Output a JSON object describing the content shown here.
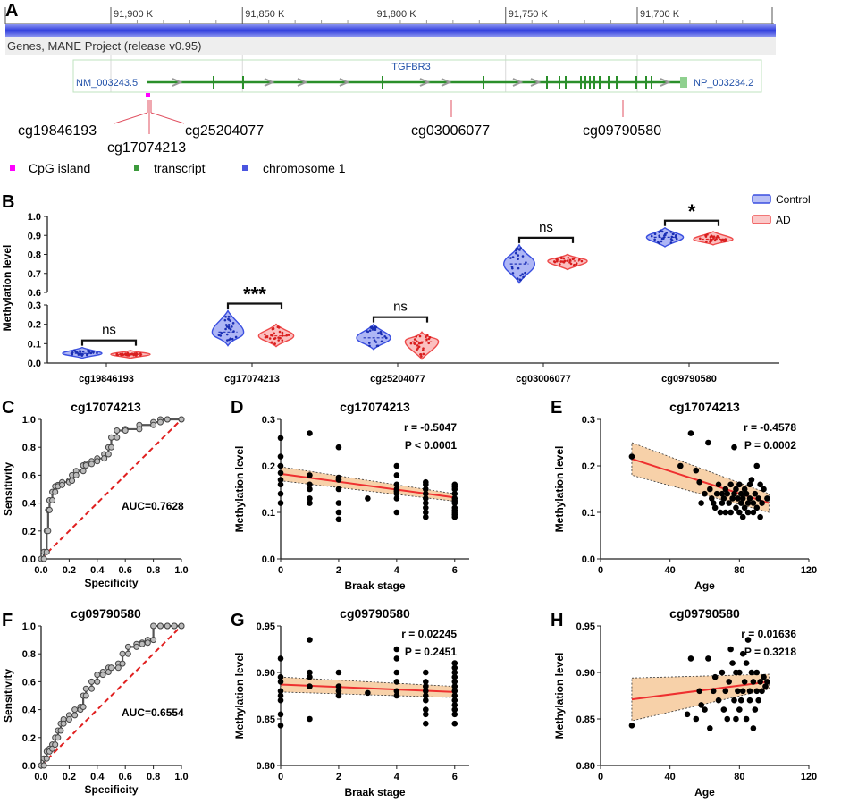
{
  "panel_a": {
    "letter": "A",
    "ruler_ticks": [
      {
        "pos": 91900,
        "label": "91,900 K"
      },
      {
        "pos": 91850,
        "label": "91,850 K"
      },
      {
        "pos": 91800,
        "label": "91,800 K"
      },
      {
        "pos": 91750,
        "label": "91,750 K"
      },
      {
        "pos": 91700,
        "label": "91,700 K"
      }
    ],
    "track_label": "Genes, MANE Project (release v0.95)",
    "gene_name": "TGFBR3",
    "transcript_left": "NM_003243.5",
    "transcript_right": "NP_003234.2",
    "probes": [
      {
        "name": "cg19846193"
      },
      {
        "name": "cg17074213"
      },
      {
        "name": "cg25204077"
      },
      {
        "name": "cg03006077"
      },
      {
        "name": "cg09790580"
      }
    ],
    "legend": [
      {
        "label": "CpG island",
        "color": "#ff00ff"
      },
      {
        "label": "transcript",
        "color": "#3c9a3c"
      },
      {
        "label": "chromosome 1",
        "color": "#4a55e0"
      }
    ]
  },
  "panel_b": {
    "letter": "B",
    "ylabel": "Methylation level",
    "lower_ticks": [
      "0.0",
      "0.1",
      "0.2",
      "0.3"
    ],
    "upper_ticks": [
      "0.6",
      "0.7",
      "0.8",
      "0.9",
      "1.0"
    ],
    "legend": [
      {
        "label": "Control",
        "color": "#3a4fe0"
      },
      {
        "label": "AD",
        "color": "#ee4a4a"
      }
    ],
    "groups": [
      {
        "name": "cg19846193",
        "control": 0.05,
        "ad": 0.045,
        "control_range": [
          0.025,
          0.08
        ],
        "ad_range": [
          0.025,
          0.065
        ],
        "sig": "ns"
      },
      {
        "name": "cg17074213",
        "control": 0.16,
        "ad": 0.14,
        "control_range": [
          0.09,
          0.27
        ],
        "ad_range": [
          0.085,
          0.2
        ],
        "sig": "***"
      },
      {
        "name": "cg25204077",
        "control": 0.13,
        "ad": 0.11,
        "control_range": [
          0.07,
          0.2
        ],
        "ad_range": [
          0.02,
          0.16
        ],
        "sig": "ns"
      },
      {
        "name": "cg03006077",
        "control": 0.75,
        "ad": 0.765,
        "control_range": [
          0.65,
          0.85
        ],
        "ad_range": [
          0.72,
          0.8
        ],
        "sig": "ns"
      },
      {
        "name": "cg09790580",
        "control": 0.89,
        "ad": 0.88,
        "control_range": [
          0.84,
          0.94
        ],
        "ad_range": [
          0.85,
          0.92
        ],
        "sig": "*"
      }
    ]
  },
  "chart_data": [
    {
      "panel": "C",
      "type": "line",
      "title": "cg17074213",
      "xlabel": "Specificity",
      "ylabel": "Sensitivity",
      "xlim": [
        0,
        1
      ],
      "ylim": [
        0,
        1
      ],
      "ticks": [
        "0.0",
        "0.2",
        "0.4",
        "0.6",
        "0.8",
        "1.0"
      ],
      "annotation": "AUC=0.7628",
      "x": [
        0,
        0.02,
        0.04,
        0.05,
        0.06,
        0.08,
        0.1,
        0.12,
        0.15,
        0.2,
        0.22,
        0.25,
        0.3,
        0.32,
        0.36,
        0.4,
        0.45,
        0.48,
        0.5,
        0.54,
        0.6,
        0.7,
        0.8,
        0.85,
        0.9,
        1.0
      ],
      "y": [
        0,
        0.05,
        0.2,
        0.35,
        0.42,
        0.48,
        0.52,
        0.53,
        0.55,
        0.56,
        0.6,
        0.63,
        0.67,
        0.68,
        0.7,
        0.72,
        0.75,
        0.8,
        0.87,
        0.92,
        0.93,
        0.96,
        0.98,
        1.0,
        1.0,
        1.0
      ]
    },
    {
      "panel": "D",
      "type": "scatter",
      "title": "cg17074213",
      "xlabel": "Braak stage",
      "ylabel": "Methylation level",
      "xlim": [
        0,
        6.5
      ],
      "ylim": [
        0,
        0.3
      ],
      "xticks": [
        "0",
        "2",
        "4",
        "6"
      ],
      "yticks": [
        "0.0",
        "0.1",
        "0.2",
        "0.3"
      ],
      "r": "r = -0.5047",
      "p": "P < 0.0001",
      "fit": {
        "x": [
          0,
          6
        ],
        "y": [
          0.183,
          0.132
        ],
        "band_lo": [
          0.168,
          0.124
        ],
        "band_hi": [
          0.198,
          0.14
        ]
      },
      "x": [
        0,
        0,
        0,
        0,
        0,
        0,
        0,
        0,
        1,
        1,
        1,
        1,
        1,
        1,
        2,
        2,
        2,
        2,
        2,
        2,
        2,
        3,
        4,
        4,
        4,
        4,
        4,
        4,
        4,
        4,
        5,
        5,
        5,
        5,
        5,
        5,
        5,
        5,
        5,
        6,
        6,
        6,
        6,
        6,
        6,
        6,
        6,
        6,
        6,
        6,
        6
      ],
      "y": [
        0.26,
        0.22,
        0.2,
        0.185,
        0.17,
        0.16,
        0.14,
        0.12,
        0.27,
        0.18,
        0.16,
        0.15,
        0.13,
        0.12,
        0.24,
        0.175,
        0.17,
        0.15,
        0.12,
        0.1,
        0.085,
        0.13,
        0.2,
        0.18,
        0.16,
        0.15,
        0.145,
        0.14,
        0.13,
        0.1,
        0.165,
        0.16,
        0.15,
        0.14,
        0.13,
        0.12,
        0.11,
        0.1,
        0.09,
        0.16,
        0.155,
        0.15,
        0.14,
        0.13,
        0.125,
        0.12,
        0.11,
        0.105,
        0.1,
        0.095,
        0.09
      ]
    },
    {
      "panel": "E",
      "type": "scatter",
      "title": "cg17074213",
      "xlabel": "Age",
      "ylabel": "Methylation level",
      "xlim": [
        0,
        120
      ],
      "ylim": [
        0,
        0.3
      ],
      "xticks": [
        "0",
        "40",
        "80",
        "120"
      ],
      "yticks": [
        "0.0",
        "0.1",
        "0.2",
        "0.3"
      ],
      "r": "r = -0.4578",
      "p": "P = 0.0002",
      "fit": {
        "x": [
          18,
          97
        ],
        "y": [
          0.215,
          0.12
        ],
        "band_lo": [
          0.18,
          0.1
        ],
        "band_hi": [
          0.25,
          0.14
        ]
      },
      "x": [
        18,
        46,
        52,
        55,
        57,
        58,
        60,
        62,
        63,
        64,
        65,
        66,
        67,
        68,
        69,
        70,
        70,
        71,
        72,
        72,
        73,
        74,
        75,
        75,
        76,
        77,
        77,
        78,
        78,
        79,
        80,
        80,
        81,
        81,
        82,
        82,
        83,
        83,
        84,
        85,
        85,
        86,
        86,
        87,
        88,
        88,
        89,
        90,
        90,
        91,
        92,
        92,
        93,
        94,
        96
      ],
      "y": [
        0.22,
        0.2,
        0.27,
        0.19,
        0.165,
        0.12,
        0.14,
        0.25,
        0.15,
        0.13,
        0.12,
        0.11,
        0.14,
        0.16,
        0.1,
        0.14,
        0.12,
        0.13,
        0.15,
        0.1,
        0.14,
        0.12,
        0.16,
        0.1,
        0.13,
        0.24,
        0.14,
        0.11,
        0.15,
        0.13,
        0.1,
        0.16,
        0.14,
        0.12,
        0.09,
        0.13,
        0.15,
        0.11,
        0.14,
        0.12,
        0.1,
        0.16,
        0.13,
        0.17,
        0.12,
        0.1,
        0.14,
        0.11,
        0.2,
        0.13,
        0.09,
        0.16,
        0.12,
        0.15,
        0.13
      ]
    },
    {
      "panel": "F",
      "type": "line",
      "title": "cg09790580",
      "xlabel": "Specificity",
      "ylabel": "Sensitivity",
      "xlim": [
        0,
        1
      ],
      "ylim": [
        0,
        1
      ],
      "ticks": [
        "0.0",
        "0.2",
        "0.4",
        "0.6",
        "0.8",
        "1.0"
      ],
      "annotation": "AUC=0.6554",
      "x": [
        0,
        0.02,
        0.04,
        0.06,
        0.08,
        0.1,
        0.12,
        0.14,
        0.16,
        0.2,
        0.24,
        0.28,
        0.3,
        0.32,
        0.36,
        0.4,
        0.44,
        0.48,
        0.5,
        0.55,
        0.58,
        0.62,
        0.68,
        0.72,
        0.76,
        0.8,
        0.85,
        0.9,
        0.95,
        1.0
      ],
      "y": [
        0,
        0.05,
        0.1,
        0.12,
        0.15,
        0.2,
        0.25,
        0.3,
        0.33,
        0.36,
        0.4,
        0.42,
        0.5,
        0.55,
        0.6,
        0.65,
        0.67,
        0.7,
        0.7,
        0.73,
        0.8,
        0.85,
        0.87,
        0.88,
        0.9,
        1.0,
        1.0,
        1.0,
        1.0,
        1.0
      ]
    },
    {
      "panel": "G",
      "type": "scatter",
      "title": "cg09790580",
      "xlabel": "Braak stage",
      "ylabel": "Methylation level",
      "xlim": [
        0,
        6.5
      ],
      "ylim": [
        0.8,
        0.95
      ],
      "xticks": [
        "0",
        "2",
        "4",
        "6"
      ],
      "yticks": [
        "0.80",
        "0.85",
        "0.90",
        "0.95"
      ],
      "r": "r = 0.02245",
      "p": "P = 0.2451",
      "fit": {
        "x": [
          0,
          6
        ],
        "y": [
          0.887,
          0.879
        ],
        "band_lo": [
          0.879,
          0.873
        ],
        "band_hi": [
          0.895,
          0.885
        ]
      },
      "x": [
        0,
        0,
        0,
        0,
        0,
        0,
        0,
        0,
        1,
        1,
        1,
        1,
        1,
        2,
        2,
        2,
        2,
        3,
        4,
        4,
        4,
        4,
        4,
        4,
        5,
        5,
        5,
        5,
        5,
        5,
        5,
        5,
        5,
        6,
        6,
        6,
        6,
        6,
        6,
        6,
        6,
        6,
        6,
        6,
        6,
        6
      ],
      "y": [
        0.915,
        0.895,
        0.89,
        0.88,
        0.875,
        0.87,
        0.855,
        0.843,
        0.935,
        0.9,
        0.895,
        0.885,
        0.85,
        0.9,
        0.885,
        0.88,
        0.875,
        0.878,
        0.925,
        0.915,
        0.9,
        0.89,
        0.88,
        0.875,
        0.9,
        0.89,
        0.885,
        0.88,
        0.875,
        0.87,
        0.86,
        0.855,
        0.845,
        0.91,
        0.905,
        0.9,
        0.895,
        0.89,
        0.885,
        0.88,
        0.875,
        0.87,
        0.865,
        0.86,
        0.855,
        0.845
      ]
    },
    {
      "panel": "H",
      "type": "scatter",
      "title": "cg09790580",
      "xlabel": "Age",
      "ylabel": "Methylation level",
      "xlim": [
        0,
        120
      ],
      "ylim": [
        0.8,
        0.95
      ],
      "xticks": [
        "0",
        "40",
        "80",
        "120"
      ],
      "yticks": [
        "0.80",
        "0.85",
        "0.90",
        "0.95"
      ],
      "r": "r = 0.01636",
      "p": "P = 0.3218",
      "fit": {
        "x": [
          18,
          97
        ],
        "y": [
          0.871,
          0.89
        ],
        "band_lo": [
          0.848,
          0.882
        ],
        "band_hi": [
          0.894,
          0.898
        ]
      },
      "x": [
        18,
        50,
        52,
        55,
        57,
        58,
        60,
        62,
        63,
        65,
        66,
        68,
        70,
        71,
        72,
        73,
        74,
        75,
        76,
        77,
        78,
        78,
        79,
        80,
        80,
        81,
        82,
        82,
        83,
        84,
        84,
        85,
        86,
        86,
        87,
        88,
        88,
        89,
        90,
        90,
        91,
        92,
        93,
        94,
        95,
        96
      ],
      "y": [
        0.843,
        0.855,
        0.915,
        0.85,
        0.88,
        0.865,
        0.86,
        0.915,
        0.84,
        0.88,
        0.895,
        0.87,
        0.9,
        0.86,
        0.88,
        0.85,
        0.89,
        0.925,
        0.91,
        0.87,
        0.9,
        0.85,
        0.88,
        0.9,
        0.86,
        0.87,
        0.92,
        0.88,
        0.89,
        0.85,
        0.91,
        0.935,
        0.87,
        0.88,
        0.9,
        0.84,
        0.89,
        0.86,
        0.88,
        0.9,
        0.87,
        0.89,
        0.88,
        0.895,
        0.885,
        0.89
      ]
    }
  ]
}
